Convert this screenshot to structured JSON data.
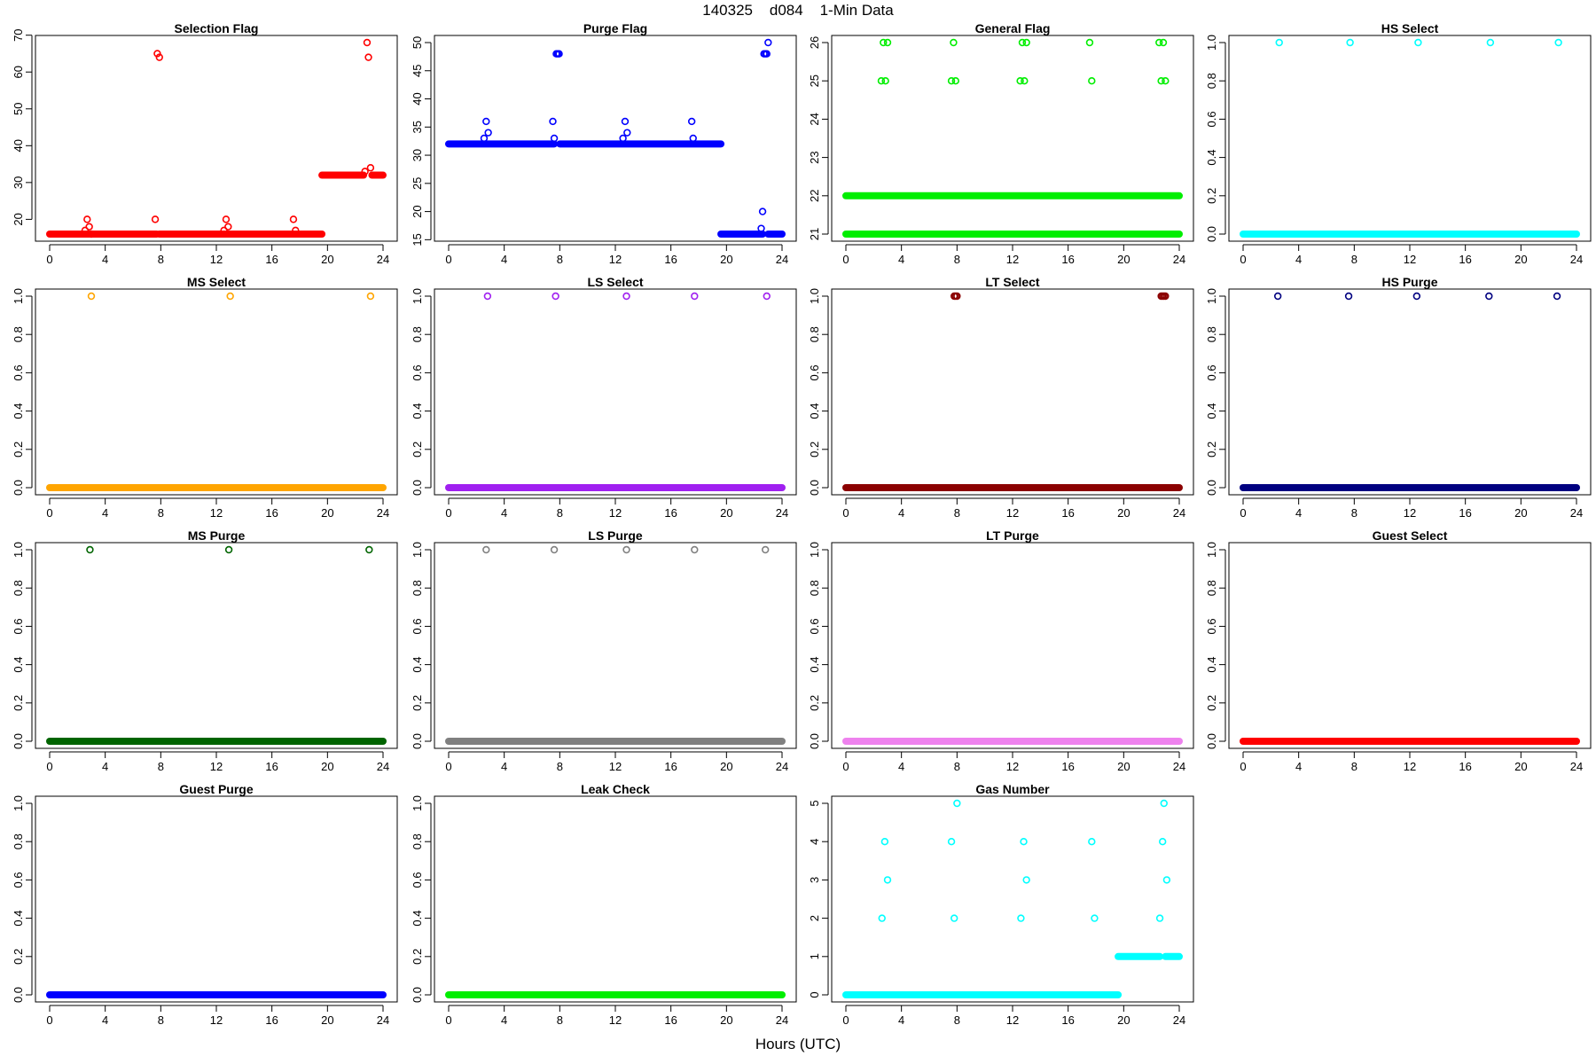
{
  "figure": {
    "title": "140325    d084    1-Min Data",
    "xlabel": "Hours (UTC)"
  },
  "chart_data": [
    {
      "type": "scatter",
      "title": "Selection Flag",
      "color": "#ff0000",
      "xlim": [
        0,
        24
      ],
      "ylim": [
        16,
        68
      ],
      "xticks": [
        0,
        4,
        8,
        12,
        16,
        20,
        24
      ],
      "yticks": [
        20,
        30,
        40,
        50,
        60,
        70
      ],
      "xlabel": "",
      "ylabel": "",
      "baseline": [
        {
          "y": 16,
          "x0": 0,
          "x1": 7.7
        },
        {
          "y": 16,
          "x0": 7.9,
          "x1": 19.6
        },
        {
          "y": 32,
          "x0": 19.6,
          "x1": 22.6
        },
        {
          "y": 32,
          "x0": 23.2,
          "x1": 24
        }
      ],
      "points": [
        [
          2.55,
          17
        ],
        [
          2.7,
          20
        ],
        [
          2.85,
          18
        ],
        [
          3.0,
          16
        ],
        [
          7.6,
          20
        ],
        [
          7.75,
          65
        ],
        [
          7.9,
          64
        ],
        [
          12.55,
          17
        ],
        [
          12.7,
          20
        ],
        [
          12.85,
          18
        ],
        [
          17.55,
          20
        ],
        [
          17.7,
          17
        ],
        [
          22.7,
          33
        ],
        [
          22.85,
          68
        ],
        [
          22.95,
          64
        ],
        [
          23.1,
          34
        ]
      ]
    },
    {
      "type": "scatter",
      "title": "Purge Flag",
      "color": "#0000ff",
      "xlim": [
        0,
        24
      ],
      "ylim": [
        16,
        50
      ],
      "xticks": [
        0,
        4,
        8,
        12,
        16,
        20,
        24
      ],
      "yticks": [
        15,
        20,
        25,
        30,
        35,
        40,
        45,
        50
      ],
      "xlabel": "",
      "ylabel": "",
      "baseline": [
        {
          "y": 32,
          "x0": 0,
          "x1": 7.6
        },
        {
          "y": 32,
          "x0": 8.0,
          "x1": 19.6
        },
        {
          "y": 16,
          "x0": 19.6,
          "x1": 22.6
        },
        {
          "y": 16,
          "x0": 23.0,
          "x1": 24
        }
      ],
      "points": [
        [
          2.55,
          33
        ],
        [
          2.7,
          36
        ],
        [
          2.85,
          34
        ],
        [
          7.5,
          36
        ],
        [
          7.6,
          33
        ],
        [
          7.75,
          48
        ],
        [
          7.85,
          48
        ],
        [
          7.95,
          48
        ],
        [
          12.55,
          33
        ],
        [
          12.7,
          36
        ],
        [
          12.85,
          34
        ],
        [
          17.5,
          36
        ],
        [
          17.6,
          33
        ],
        [
          22.5,
          17
        ],
        [
          22.6,
          20
        ],
        [
          22.7,
          48
        ],
        [
          22.8,
          48
        ],
        [
          22.9,
          48
        ],
        [
          23.0,
          50
        ]
      ]
    },
    {
      "type": "scatter",
      "title": "General Flag",
      "color": "#00ee00",
      "xlim": [
        0,
        24
      ],
      "ylim": [
        21,
        26
      ],
      "xticks": [
        0,
        4,
        8,
        12,
        16,
        20,
        24
      ],
      "yticks": [
        21,
        22,
        23,
        24,
        25,
        26
      ],
      "xlabel": "",
      "ylabel": "",
      "baseline": [
        {
          "y": 21,
          "x0": 0,
          "x1": 24
        },
        {
          "y": 22,
          "x0": 0,
          "x1": 24
        }
      ],
      "points": [
        [
          2.55,
          25
        ],
        [
          2.7,
          26
        ],
        [
          2.85,
          25
        ],
        [
          3.0,
          26
        ],
        [
          7.6,
          25
        ],
        [
          7.75,
          26
        ],
        [
          7.9,
          25
        ],
        [
          12.55,
          25
        ],
        [
          12.7,
          26
        ],
        [
          12.85,
          25
        ],
        [
          13.0,
          26
        ],
        [
          17.55,
          26
        ],
        [
          17.7,
          25
        ],
        [
          22.55,
          26
        ],
        [
          22.7,
          25
        ],
        [
          22.85,
          26
        ],
        [
          23.0,
          25
        ]
      ]
    },
    {
      "type": "scatter",
      "title": "HS Select",
      "color": "#00ffff",
      "xlim": [
        0,
        24
      ],
      "ylim": [
        0,
        1
      ],
      "xticks": [
        0,
        4,
        8,
        12,
        16,
        20,
        24
      ],
      "yticks": [
        0.0,
        0.2,
        0.4,
        0.6,
        0.8,
        1.0
      ],
      "xlabel": "",
      "ylabel": "",
      "baseline": [
        {
          "y": 0,
          "x0": 0,
          "x1": 24
        }
      ],
      "points": [
        [
          2.6,
          1
        ],
        [
          7.7,
          1
        ],
        [
          12.6,
          1
        ],
        [
          17.8,
          1
        ],
        [
          22.7,
          1
        ]
      ]
    },
    {
      "type": "scatter",
      "title": "MS Select",
      "color": "#ffa500",
      "xlim": [
        0,
        24
      ],
      "ylim": [
        0,
        1
      ],
      "xticks": [
        0,
        4,
        8,
        12,
        16,
        20,
        24
      ],
      "yticks": [
        0.0,
        0.2,
        0.4,
        0.6,
        0.8,
        1.0
      ],
      "xlabel": "",
      "ylabel": "",
      "baseline": [
        {
          "y": 0,
          "x0": 0,
          "x1": 24
        }
      ],
      "points": [
        [
          3.0,
          1
        ],
        [
          13.0,
          1
        ],
        [
          23.1,
          1
        ]
      ]
    },
    {
      "type": "scatter",
      "title": "LS Select",
      "color": "#a020f0",
      "xlim": [
        0,
        24
      ],
      "ylim": [
        0,
        1
      ],
      "xticks": [
        0,
        4,
        8,
        12,
        16,
        20,
        24
      ],
      "yticks": [
        0.0,
        0.2,
        0.4,
        0.6,
        0.8,
        1.0
      ],
      "xlabel": "",
      "ylabel": "",
      "baseline": [
        {
          "y": 0,
          "x0": 0,
          "x1": 24
        }
      ],
      "points": [
        [
          2.8,
          1
        ],
        [
          7.7,
          1
        ],
        [
          12.8,
          1
        ],
        [
          17.7,
          1
        ],
        [
          22.9,
          1
        ]
      ]
    },
    {
      "type": "scatter",
      "title": "LT Select",
      "color": "#8b0000",
      "xlim": [
        0,
        24
      ],
      "ylim": [
        0,
        1
      ],
      "xticks": [
        0,
        4,
        8,
        12,
        16,
        20,
        24
      ],
      "yticks": [
        0.0,
        0.2,
        0.4,
        0.6,
        0.8,
        1.0
      ],
      "xlabel": "",
      "ylabel": "",
      "baseline": [
        {
          "y": 0,
          "x0": 0,
          "x1": 24
        }
      ],
      "points": [
        [
          7.8,
          1
        ],
        [
          7.9,
          1
        ],
        [
          8.0,
          1
        ],
        [
          22.7,
          1
        ],
        [
          22.8,
          1
        ],
        [
          22.9,
          1
        ],
        [
          23.0,
          1
        ]
      ]
    },
    {
      "type": "scatter",
      "title": "HS Purge",
      "color": "#000080",
      "xlim": [
        0,
        24
      ],
      "ylim": [
        0,
        1
      ],
      "xticks": [
        0,
        4,
        8,
        12,
        16,
        20,
        24
      ],
      "yticks": [
        0.0,
        0.2,
        0.4,
        0.6,
        0.8,
        1.0
      ],
      "xlabel": "",
      "ylabel": "",
      "baseline": [
        {
          "y": 0,
          "x0": 0,
          "x1": 24
        }
      ],
      "points": [
        [
          2.5,
          1
        ],
        [
          7.6,
          1
        ],
        [
          12.5,
          1
        ],
        [
          17.7,
          1
        ],
        [
          22.6,
          1
        ]
      ]
    },
    {
      "type": "scatter",
      "title": "MS Purge",
      "color": "#006400",
      "xlim": [
        0,
        24
      ],
      "ylim": [
        0,
        1
      ],
      "xticks": [
        0,
        4,
        8,
        12,
        16,
        20,
        24
      ],
      "yticks": [
        0.0,
        0.2,
        0.4,
        0.6,
        0.8,
        1.0
      ],
      "xlabel": "",
      "ylabel": "",
      "baseline": [
        {
          "y": 0,
          "x0": 0,
          "x1": 24
        }
      ],
      "points": [
        [
          2.9,
          1
        ],
        [
          12.9,
          1
        ],
        [
          23.0,
          1
        ]
      ]
    },
    {
      "type": "scatter",
      "title": "LS Purge",
      "color": "#808080",
      "xlim": [
        0,
        24
      ],
      "ylim": [
        0,
        1
      ],
      "xticks": [
        0,
        4,
        8,
        12,
        16,
        20,
        24
      ],
      "yticks": [
        0.0,
        0.2,
        0.4,
        0.6,
        0.8,
        1.0
      ],
      "xlabel": "",
      "ylabel": "",
      "baseline": [
        {
          "y": 0,
          "x0": 0,
          "x1": 24
        }
      ],
      "points": [
        [
          2.7,
          1
        ],
        [
          7.6,
          1
        ],
        [
          12.8,
          1
        ],
        [
          17.7,
          1
        ],
        [
          22.8,
          1
        ]
      ]
    },
    {
      "type": "scatter",
      "title": "LT Purge",
      "color": "#ee82ee",
      "xlim": [
        0,
        24
      ],
      "ylim": [
        0,
        1
      ],
      "xticks": [
        0,
        4,
        8,
        12,
        16,
        20,
        24
      ],
      "yticks": [
        0.0,
        0.2,
        0.4,
        0.6,
        0.8,
        1.0
      ],
      "xlabel": "",
      "ylabel": "",
      "baseline": [
        {
          "y": 0,
          "x0": 0,
          "x1": 24
        }
      ],
      "points": []
    },
    {
      "type": "scatter",
      "title": "Guest Select",
      "color": "#ff0000",
      "xlim": [
        0,
        24
      ],
      "ylim": [
        0,
        1
      ],
      "xticks": [
        0,
        4,
        8,
        12,
        16,
        20,
        24
      ],
      "yticks": [
        0.0,
        0.2,
        0.4,
        0.6,
        0.8,
        1.0
      ],
      "xlabel": "",
      "ylabel": "",
      "baseline": [
        {
          "y": 0,
          "x0": 0,
          "x1": 24
        }
      ],
      "points": []
    },
    {
      "type": "scatter",
      "title": "Guest Purge",
      "color": "#0000ff",
      "xlim": [
        0,
        24
      ],
      "ylim": [
        0,
        1
      ],
      "xticks": [
        0,
        4,
        8,
        12,
        16,
        20,
        24
      ],
      "yticks": [
        0.0,
        0.2,
        0.4,
        0.6,
        0.8,
        1.0
      ],
      "xlabel": "",
      "ylabel": "",
      "baseline": [
        {
          "y": 0,
          "x0": 0,
          "x1": 24
        }
      ],
      "points": []
    },
    {
      "type": "scatter",
      "title": "Leak Check",
      "color": "#00ee00",
      "xlim": [
        0,
        24
      ],
      "ylim": [
        0,
        1
      ],
      "xticks": [
        0,
        4,
        8,
        12,
        16,
        20,
        24
      ],
      "yticks": [
        0.0,
        0.2,
        0.4,
        0.6,
        0.8,
        1.0
      ],
      "xlabel": "",
      "ylabel": "",
      "baseline": [
        {
          "y": 0,
          "x0": 0,
          "x1": 24
        }
      ],
      "points": []
    },
    {
      "type": "scatter",
      "title": "Gas Number",
      "color": "#00ffff",
      "xlim": [
        0,
        24
      ],
      "ylim": [
        0,
        5
      ],
      "xticks": [
        0,
        4,
        8,
        12,
        16,
        20,
        24
      ],
      "yticks": [
        0,
        1,
        2,
        3,
        4,
        5
      ],
      "xlabel": "",
      "ylabel": "",
      "baseline": [
        {
          "y": 0,
          "x0": 0,
          "x1": 19.6
        },
        {
          "y": 1,
          "x0": 19.6,
          "x1": 22.6
        },
        {
          "y": 1,
          "x0": 23.0,
          "x1": 24
        }
      ],
      "points": [
        [
          2.6,
          2
        ],
        [
          2.8,
          4
        ],
        [
          3.0,
          3
        ],
        [
          7.6,
          4
        ],
        [
          7.8,
          2
        ],
        [
          8.0,
          5
        ],
        [
          12.6,
          2
        ],
        [
          12.8,
          4
        ],
        [
          13.0,
          3
        ],
        [
          17.7,
          4
        ],
        [
          17.9,
          2
        ],
        [
          22.6,
          2
        ],
        [
          22.8,
          4
        ],
        [
          22.9,
          5
        ],
        [
          23.1,
          3
        ]
      ]
    }
  ]
}
